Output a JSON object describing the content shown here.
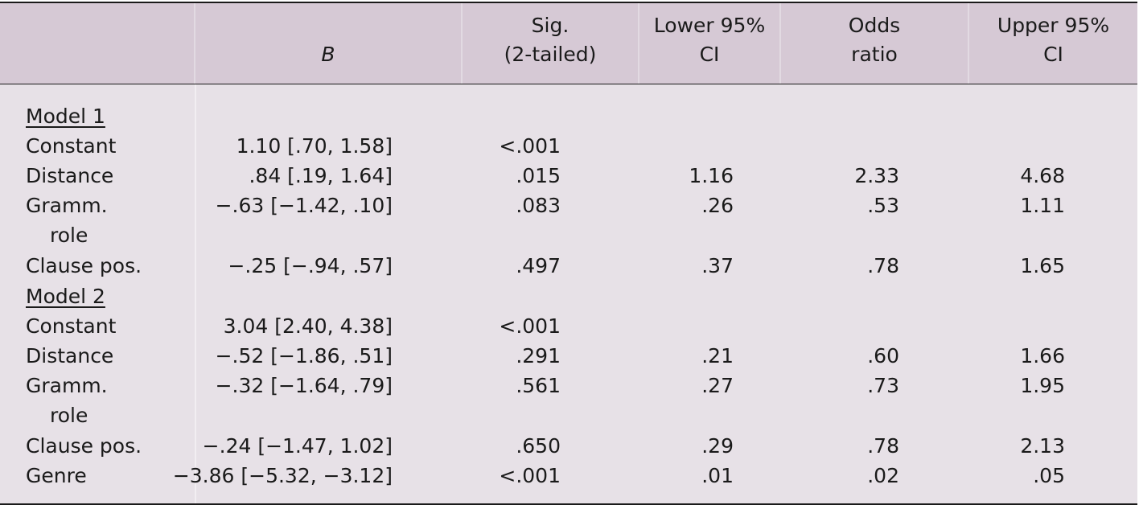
{
  "table": {
    "headers": {
      "col0": "",
      "col1": "B",
      "col2_line1": "Sig.",
      "col2_line2": "(2-tailed)",
      "col3_line1": "Lower 95%",
      "col3_line2": "CI",
      "col4_line1": "Odds",
      "col4_line2": "ratio",
      "col5_line1": "Upper 95%",
      "col5_line2": "CI"
    },
    "models": [
      {
        "title": "Model 1",
        "rows": [
          {
            "label": "Constant",
            "b": "1.10 [.70, 1.58]",
            "sig": "<.001",
            "lower": "",
            "odds": "",
            "upper": ""
          },
          {
            "label": "Distance",
            "b": ".84 [.19, 1.64]",
            "sig": ".015",
            "lower": "1.16",
            "odds": "2.33",
            "upper": "4.68"
          },
          {
            "label_line1": "Gramm.",
            "label_line2": "role",
            "b": "−.63 [−1.42, .10]",
            "sig": ".083",
            "lower": ".26",
            "odds": ".53",
            "upper": "1.11"
          },
          {
            "label": "Clause pos.",
            "b": "−.25 [−.94, .57]",
            "sig": ".497",
            "lower": ".37",
            "odds": ".78",
            "upper": "1.65"
          }
        ]
      },
      {
        "title": "Model 2",
        "rows": [
          {
            "label": "Constant",
            "b": "3.04 [2.40, 4.38]",
            "sig": "<.001",
            "lower": "",
            "odds": "",
            "upper": ""
          },
          {
            "label": "Distance",
            "b": "−.52 [−1.86, .51]",
            "sig": ".291",
            "lower": ".21",
            "odds": ".60",
            "upper": "1.66"
          },
          {
            "label_line1": "Gramm.",
            "label_line2": "role",
            "b": "−.32 [−1.64, .79]",
            "sig": ".561",
            "lower": ".27",
            "odds": ".73",
            "upper": "1.95"
          },
          {
            "label": "Clause pos.",
            "b": "−.24 [−1.47, 1.02]",
            "sig": ".650",
            "lower": ".29",
            "odds": ".78",
            "upper": "2.13"
          },
          {
            "label": "Genre",
            "b": "−3.86 [−5.32, −3.12]",
            "sig": "<.001",
            "lower": ".01",
            "odds": ".02",
            "upper": ".05"
          }
        ]
      }
    ]
  }
}
